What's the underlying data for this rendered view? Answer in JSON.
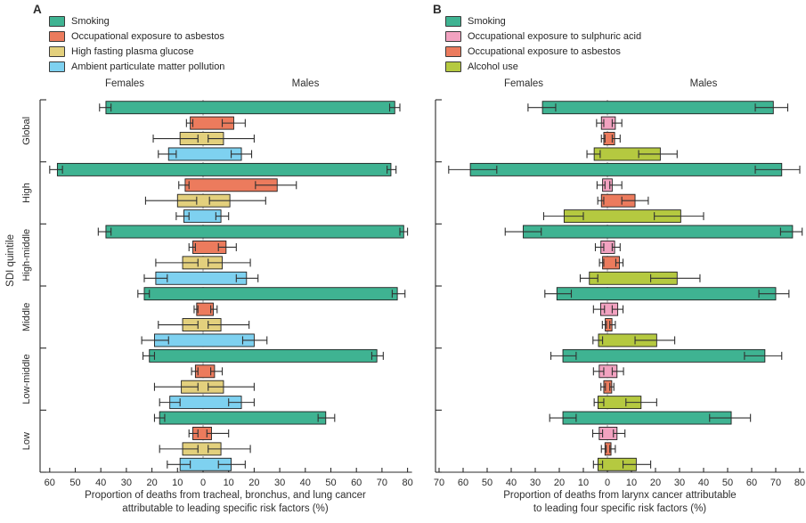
{
  "chart_data": {
    "type": "bar",
    "variant": "diverging-horizontal-bars-with-95CI-error-bars",
    "ylabel": "SDI quintile",
    "categories": [
      "Global",
      "High",
      "High-middle",
      "Middle",
      "Low-middle",
      "Low"
    ],
    "panels": [
      {
        "label": "A",
        "headers": {
          "left": "Females",
          "right": "Males"
        },
        "title_lines": [
          "Proportion of deaths from tracheal, bronchus, and lung cancer",
          "attributable to leading specific risk factors (%)"
        ],
        "axis": {
          "female_max": 60,
          "male_max": 80,
          "tick_step": 10
        },
        "show_category_labels": true,
        "legend": [
          {
            "name": "Smoking",
            "color": "#3FB392"
          },
          {
            "name": "Occupational exposure to asbestos",
            "color": "#EC7B5D"
          },
          {
            "name": "High fasting plasma glucose",
            "color": "#E3D07D"
          },
          {
            "name": "Ambient particulate matter pollution",
            "color": "#7ED1F0"
          }
        ],
        "groups": [
          {
            "category": "Global",
            "bars": [
              {
                "factor": "Smoking",
                "female": 38,
                "female_ci": [
                  36,
                  40.5
                ],
                "male": 75,
                "male_ci": [
                  73,
                  77
                ]
              },
              {
                "factor": "Occupational exposure to asbestos",
                "female": 5,
                "female_ci": [
                  4,
                  6.5
                ],
                "male": 12,
                "male_ci": [
                  7.5,
                  16.5
                ]
              },
              {
                "factor": "High fasting plasma glucose",
                "female": 9,
                "female_ci": [
                  2,
                  19.5
                ],
                "male": 8,
                "male_ci": [
                  2,
                  20
                ]
              },
              {
                "factor": "Ambient particulate matter pollution",
                "female": 13.5,
                "female_ci": [
                  10.5,
                  17.5
                ],
                "male": 15,
                "male_ci": [
                  11,
                  19
                ]
              }
            ]
          },
          {
            "category": "High",
            "bars": [
              {
                "factor": "Smoking",
                "female": 57,
                "female_ci": [
                  55,
                  60
                ],
                "male": 73.5,
                "male_ci": [
                  72,
                  75.5
                ]
              },
              {
                "factor": "Occupational exposure to asbestos",
                "female": 7,
                "female_ci": [
                  5.5,
                  9.5
                ],
                "male": 29,
                "male_ci": [
                  20.5,
                  36.5
                ]
              },
              {
                "factor": "High fasting plasma glucose",
                "female": 10,
                "female_ci": [
                  2.5,
                  22.5
                ],
                "male": 10.5,
                "male_ci": [
                  2.5,
                  24.5
                ]
              },
              {
                "factor": "Ambient particulate matter pollution",
                "female": 7.5,
                "female_ci": [
                  5.5,
                  10.5
                ],
                "male": 7,
                "male_ci": [
                  5,
                  10
                ]
              }
            ]
          },
          {
            "category": "High-middle",
            "bars": [
              {
                "factor": "Smoking",
                "female": 38,
                "female_ci": [
                  36,
                  41
                ],
                "male": 78.5,
                "male_ci": [
                  77,
                  80
                ]
              },
              {
                "factor": "Occupational exposure to asbestos",
                "female": 4,
                "female_ci": [
                  3,
                  5.5
                ],
                "male": 9,
                "male_ci": [
                  6,
                  13
                ]
              },
              {
                "factor": "High fasting plasma glucose",
                "female": 8,
                "female_ci": [
                  2,
                  18.5
                ],
                "male": 7.5,
                "male_ci": [
                  2,
                  18.5
                ]
              },
              {
                "factor": "Ambient particulate matter pollution",
                "female": 18.5,
                "female_ci": [
                  14,
                  23
                ],
                "male": 17,
                "male_ci": [
                  13,
                  21.5
                ]
              }
            ]
          },
          {
            "category": "Middle",
            "bars": [
              {
                "factor": "Smoking",
                "female": 23,
                "female_ci": [
                  21,
                  25.5
                ],
                "male": 76,
                "male_ci": [
                  74,
                  79
                ]
              },
              {
                "factor": "Occupational exposure to asbestos",
                "female": 2.5,
                "female_ci": [
                  2,
                  3.5
                ],
                "male": 4,
                "male_ci": [
                  3,
                  5.5
                ]
              },
              {
                "factor": "High fasting plasma glucose",
                "female": 8,
                "female_ci": [
                  2,
                  17.5
                ],
                "male": 7,
                "male_ci": [
                  2,
                  18
                ]
              },
              {
                "factor": "Ambient particulate matter pollution",
                "female": 19,
                "female_ci": [
                  13.5,
                  24
                ],
                "male": 20,
                "male_ci": [
                  15.5,
                  25
                ]
              }
            ]
          },
          {
            "category": "Low-middle",
            "bars": [
              {
                "factor": "Smoking",
                "female": 21,
                "female_ci": [
                  19,
                  23.5
                ],
                "male": 68,
                "male_ci": [
                  66,
                  70.5
                ]
              },
              {
                "factor": "Occupational exposure to asbestos",
                "female": 3,
                "female_ci": [
                  2,
                  4.5
                ],
                "male": 4.5,
                "male_ci": [
                  3,
                  7.5
                ]
              },
              {
                "factor": "High fasting plasma glucose",
                "female": 8.5,
                "female_ci": [
                  2,
                  19
                ],
                "male": 8,
                "male_ci": [
                  2,
                  20
                ]
              },
              {
                "factor": "Ambient particulate matter pollution",
                "female": 13,
                "female_ci": [
                  9,
                  17
                ],
                "male": 15,
                "male_ci": [
                  10,
                  20
                ]
              }
            ]
          },
          {
            "category": "Low",
            "bars": [
              {
                "factor": "Smoking",
                "female": 17,
                "female_ci": [
                  15,
                  19
                ],
                "male": 48,
                "male_ci": [
                  45,
                  51.5
                ]
              },
              {
                "factor": "Occupational exposure to asbestos",
                "female": 4,
                "female_ci": [
                  2,
                  5.5
                ],
                "male": 3.3,
                "male_ci": [
                  1.5,
                  10
                ]
              },
              {
                "factor": "High fasting plasma glucose",
                "female": 8,
                "female_ci": [
                  2,
                  17
                ],
                "male": 7,
                "male_ci": [
                  2,
                  18.5
                ]
              },
              {
                "factor": "Ambient particulate matter pollution",
                "female": 9,
                "female_ci": [
                  5,
                  14
                ],
                "male": 11,
                "male_ci": [
                  6,
                  16.5
                ]
              }
            ]
          }
        ]
      },
      {
        "label": "B",
        "headers": {
          "left": "Females",
          "right": "Males"
        },
        "title_lines": [
          "Proportion of deaths from larynx cancer attributable",
          "to leading four specific risk factors (%)"
        ],
        "axis": {
          "female_max": 70,
          "male_max": 80,
          "tick_step": 10
        },
        "show_category_labels": false,
        "legend": [
          {
            "name": "Smoking",
            "color": "#3FB392"
          },
          {
            "name": "Occupational exposure to sulphuric acid",
            "color": "#F2A2C0"
          },
          {
            "name": "Occupational exposure to asbestos",
            "color": "#EC7B5D"
          },
          {
            "name": "Alcohol use",
            "color": "#B5C940"
          }
        ],
        "groups": [
          {
            "category": "Global",
            "bars": [
              {
                "factor": "Smoking",
                "female": 27,
                "female_ci": [
                  21.5,
                  33
                ],
                "male": 69,
                "male_ci": [
                  61.5,
                  75
                ]
              },
              {
                "factor": "Occupational exposure to sulphuric acid",
                "female": 2.5,
                "female_ci": [
                  1.5,
                  4.5
                ],
                "male": 3.3,
                "male_ci": [
                  2,
                  6
                ]
              },
              {
                "factor": "Occupational exposure to asbestos",
                "female": 1.5,
                "female_ci": [
                  1,
                  2.5
                ],
                "male": 3,
                "male_ci": [
                  2,
                  5.3
                ]
              },
              {
                "factor": "Alcohol use",
                "female": 5.5,
                "female_ci": [
                  3,
                  8.5
                ],
                "male": 22,
                "male_ci": [
                  13,
                  29
                ]
              }
            ]
          },
          {
            "category": "High",
            "bars": [
              {
                "factor": "Smoking",
                "female": 57,
                "female_ci": [
                  46,
                  66
                ],
                "male": 72.5,
                "male_ci": [
                  61.5,
                  80
                ]
              },
              {
                "factor": "Occupational exposure to sulphuric acid",
                "female": 2,
                "female_ci": [
                  1,
                  4.3
                ],
                "male": 2,
                "male_ci": [
                  1,
                  6
                ]
              },
              {
                "factor": "Occupational exposure to asbestos",
                "female": 2.5,
                "female_ci": [
                  1.5,
                  4
                ],
                "male": 11.5,
                "male_ci": [
                  6,
                  17
                ]
              },
              {
                "factor": "Alcohol use",
                "female": 18,
                "female_ci": [
                  10,
                  26.5
                ],
                "male": 30.5,
                "male_ci": [
                  19.5,
                  40
                ]
              }
            ]
          },
          {
            "category": "High-middle",
            "bars": [
              {
                "factor": "Smoking",
                "female": 35,
                "female_ci": [
                  27.5,
                  42.5
                ],
                "male": 77,
                "male_ci": [
                  72,
                  81
                ]
              },
              {
                "factor": "Occupational exposure to sulphuric acid",
                "female": 2.7,
                "female_ci": [
                  1.5,
                  5
                ],
                "male": 3,
                "male_ci": [
                  2,
                  5.3
                ]
              },
              {
                "factor": "Occupational exposure to asbestos",
                "female": 2,
                "female_ci": [
                  1.5,
                  3.3
                ],
                "male": 5,
                "male_ci": [
                  3.5,
                  6.5
                ]
              },
              {
                "factor": "Alcohol use",
                "female": 7.5,
                "female_ci": [
                  4,
                  11.3
                ],
                "male": 29,
                "male_ci": [
                  18,
                  38.5
                ]
              }
            ]
          },
          {
            "category": "Middle",
            "bars": [
              {
                "factor": "Smoking",
                "female": 21,
                "female_ci": [
                  15,
                  26
                ],
                "male": 70,
                "male_ci": [
                  63,
                  75.5
                ]
              },
              {
                "factor": "Occupational exposure to sulphuric acid",
                "female": 2.8,
                "female_ci": [
                  1.2,
                  5.8
                ],
                "male": 4.3,
                "male_ci": [
                  2,
                  6.5
                ]
              },
              {
                "factor": "Occupational exposure to asbestos",
                "female": 0.9,
                "female_ci": [
                  0.4,
                  2.1
                ],
                "male": 1.9,
                "male_ci": [
                  1,
                  3.3
                ]
              },
              {
                "factor": "Alcohol use",
                "female": 3.7,
                "female_ci": [
                  2,
                  6
                ],
                "male": 20.5,
                "male_ci": [
                  11.5,
                  28
                ]
              }
            ]
          },
          {
            "category": "Low-middle",
            "bars": [
              {
                "factor": "Smoking",
                "female": 18.5,
                "female_ci": [
                  13,
                  23.5
                ],
                "male": 65.5,
                "male_ci": [
                  57,
                  72.5
                ]
              },
              {
                "factor": "Occupational exposure to sulphuric acid",
                "female": 3.4,
                "female_ci": [
                  1.5,
                  5.8
                ],
                "male": 4,
                "male_ci": [
                  2,
                  6.7
                ]
              },
              {
                "factor": "Occupational exposure to asbestos",
                "female": 1.5,
                "female_ci": [
                  0.8,
                  2.7
                ],
                "male": 1.8,
                "male_ci": [
                  1,
                  2.7
                ]
              },
              {
                "factor": "Alcohol use",
                "female": 3.9,
                "female_ci": [
                  1.5,
                  5.5
                ],
                "male": 14,
                "male_ci": [
                  7.7,
                  20.5
                ]
              }
            ]
          },
          {
            "category": "Low",
            "bars": [
              {
                "factor": "Smoking",
                "female": 18.5,
                "female_ci": [
                  13,
                  24
                ],
                "male": 51.5,
                "male_ci": [
                  42.5,
                  59.5
                ]
              },
              {
                "factor": "Occupational exposure to sulphuric acid",
                "female": 3.4,
                "female_ci": [
                  2,
                  6.1
                ],
                "male": 4,
                "male_ci": [
                  2.5,
                  7.3
                ]
              },
              {
                "factor": "Occupational exposure to asbestos",
                "female": 1,
                "female_ci": [
                  0.5,
                  2.5
                ],
                "male": 1.5,
                "male_ci": [
                  1,
                  3.3
                ]
              },
              {
                "factor": "Alcohol use",
                "female": 3.9,
                "female_ci": [
                  2,
                  5.8
                ],
                "male": 12,
                "male_ci": [
                  6.5,
                  18
                ]
              }
            ]
          }
        ]
      }
    ]
  }
}
